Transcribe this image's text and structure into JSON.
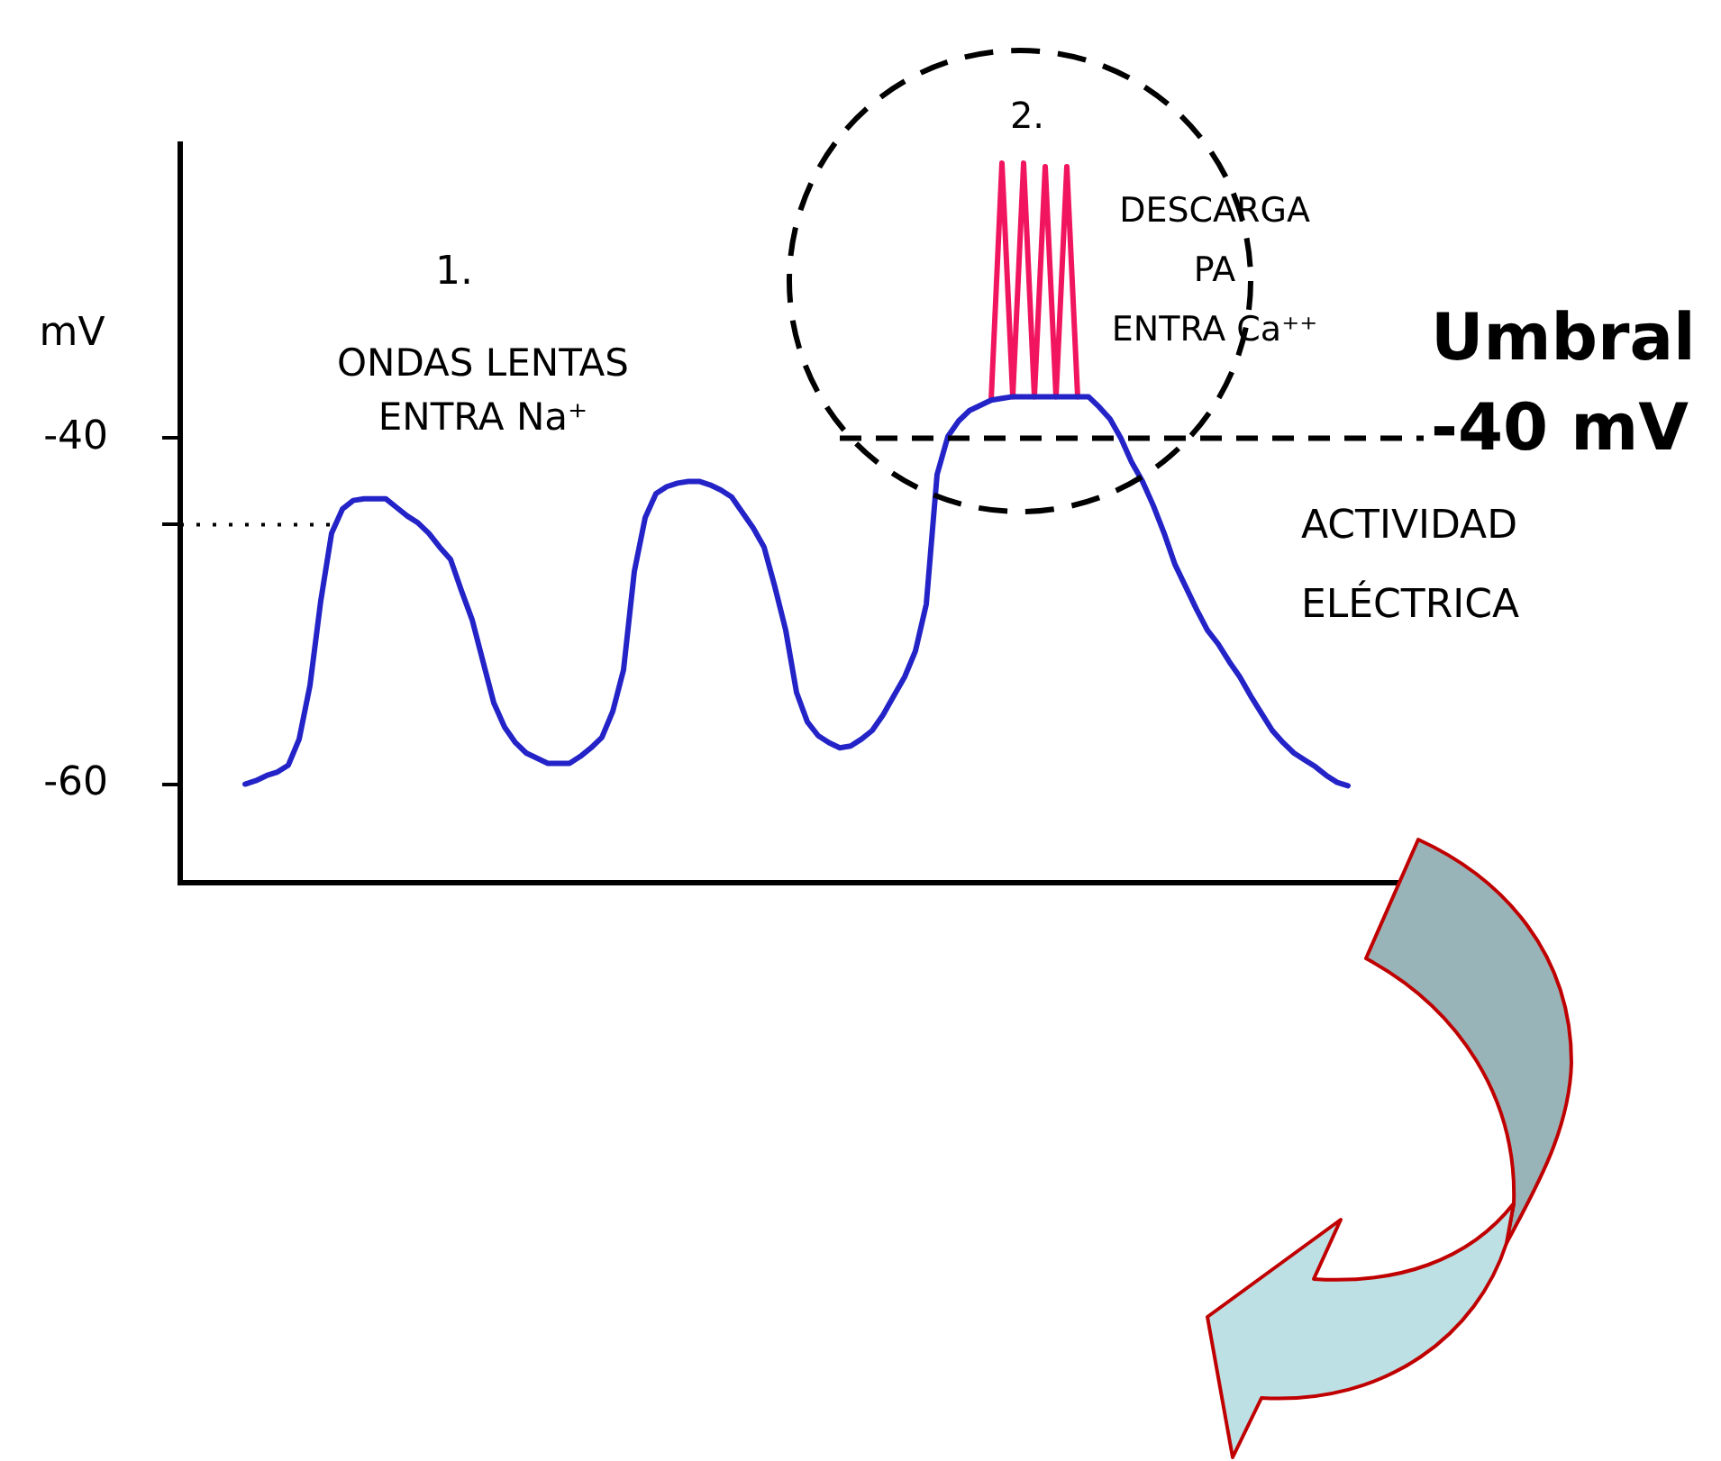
{
  "chart_data": {
    "type": "line",
    "ylabel": "mV",
    "categories": [
      null,
      null,
      null,
      null,
      null,
      null,
      null,
      null,
      null,
      null,
      null,
      null,
      null,
      null,
      null,
      null,
      null,
      null,
      null,
      null,
      null,
      null,
      null,
      null,
      null,
      null,
      null,
      null,
      null,
      null,
      null,
      null,
      null,
      null,
      null,
      null,
      null,
      null,
      null,
      null,
      null,
      null,
      null,
      null,
      null,
      null,
      null,
      null,
      null,
      null,
      null,
      null,
      null,
      null,
      null,
      null,
      null,
      null,
      null,
      null,
      null,
      null,
      null,
      null,
      null,
      null,
      null,
      null,
      null,
      null,
      null,
      null,
      null,
      null,
      null,
      null,
      null,
      null,
      null,
      null,
      null,
      null,
      null,
      null,
      null,
      null,
      null,
      null,
      null,
      null,
      null,
      null,
      null,
      null,
      null,
      null,
      null,
      null,
      null,
      null,
      null,
      null,
      null,
      null,
      null,
      null,
      null,
      null,
      null,
      null,
      null,
      null,
      null,
      null,
      null,
      null
    ],
    "series": [
      {
        "color": "#2323c8",
        "values": [
          null,
          null,
          null,
          null,
          null,
          null,
          -60.0,
          -59.8,
          -59.5,
          -59.3,
          -58.9,
          -57.4,
          -54.3,
          -49.4,
          -45.5,
          -44.1,
          -43.6,
          -43.5,
          -43.5,
          -43.5,
          -44.0,
          -44.5,
          -44.9,
          -45.5,
          -46.3,
          -47.0,
          -48.8,
          -50.5,
          -52.9,
          -55.3,
          -56.7,
          -57.6,
          -58.2,
          -58.5,
          -58.8,
          -58.8,
          -58.8,
          -58.4,
          -57.9,
          -57.3,
          -55.8,
          -53.4,
          -47.7,
          -44.6,
          -43.2,
          -42.8,
          -42.6,
          -42.5,
          -42.5,
          -42.7,
          -43.0,
          -43.4,
          -44.3,
          -45.2,
          -46.3,
          -48.6,
          -51.1,
          -54.7,
          -56.4,
          -57.2,
          -57.6,
          -57.9,
          -57.8,
          -57.4,
          -56.9,
          -56.0,
          -54.9,
          -53.8,
          -52.3,
          -49.6,
          -42.1,
          -39.9,
          -39.0,
          -38.4,
          -38.1,
          -37.8,
          -37.7,
          -37.6,
          -37.6,
          -37.6,
          -37.6,
          -37.6,
          -37.6,
          -37.6,
          -37.6,
          -38.2,
          -38.9,
          -40.0,
          -41.4,
          -42.5,
          -43.9,
          -45.5,
          -47.3,
          -48.6,
          -49.9,
          -51.1,
          -51.9,
          -52.9,
          -53.8,
          -54.9,
          -55.9,
          -56.9,
          -57.6,
          -58.2,
          -58.6,
          -59.0,
          -59.5,
          -59.9,
          -60.1,
          null,
          null,
          null,
          null,
          null,
          null,
          null
        ]
      },
      {
        "color": "#f0155e",
        "values": [
          null,
          null,
          null,
          null,
          null,
          null,
          null,
          null,
          null,
          null,
          null,
          null,
          null,
          null,
          null,
          null,
          null,
          null,
          null,
          null,
          null,
          null,
          null,
          null,
          null,
          null,
          null,
          null,
          null,
          null,
          null,
          null,
          null,
          null,
          null,
          null,
          null,
          null,
          null,
          null,
          null,
          null,
          null,
          null,
          null,
          null,
          null,
          null,
          null,
          null,
          null,
          null,
          null,
          null,
          null,
          null,
          null,
          null,
          null,
          null,
          null,
          null,
          null,
          null,
          null,
          null,
          null,
          null,
          null,
          null,
          null,
          null,
          null,
          null,
          null,
          -37.8,
          -24.1,
          -37.6,
          -24.1,
          -37.6,
          -24.3,
          -37.6,
          -24.3,
          -37.6,
          null,
          null,
          null,
          null,
          null,
          null,
          null,
          null,
          null,
          null,
          null,
          null,
          null,
          null,
          null,
          null,
          null,
          null,
          null,
          null,
          null,
          null,
          null,
          null,
          null,
          null,
          null,
          null,
          null,
          null,
          null,
          null
        ]
      }
    ],
    "ylim": [
      -65.7,
      -23
    ],
    "yticks": [
      -60,
      {
        "value": -45,
        "label": null
      },
      -40
    ],
    "ref_lines": [
      {
        "axis": "y",
        "value": -40,
        "label": "Umbral\n-40 mV",
        "line_style": "dashed",
        "color": "#000000"
      },
      {
        "axis": "y",
        "value": -45,
        "line_style": "dotted",
        "color": "#000000"
      }
    ],
    "annotations": [
      "1.",
      "ONDAS LENTAS\nENTRA Na⁺",
      "2.",
      "DESCARGA\nPA\nENTRA Ca⁺⁺",
      "ACTIVIDAD\nELÉCTRICA"
    ]
  }
}
